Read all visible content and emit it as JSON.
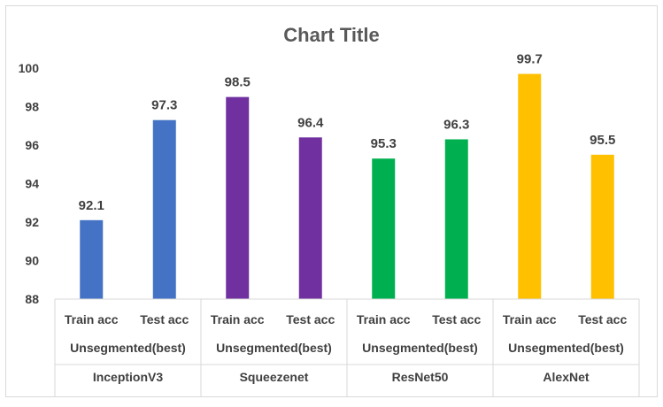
{
  "chart_data": {
    "type": "bar",
    "title": "Chart Title",
    "xlabel": "",
    "ylabel": "",
    "ylim": [
      88,
      100
    ],
    "y_ticks": [
      88,
      90,
      92,
      94,
      96,
      98,
      100
    ],
    "grid": false,
    "legend": "none",
    "groups": [
      {
        "model": "InceptionV3",
        "subgroup": "Unsegmented(best)",
        "color": "#4472C4",
        "bars": [
          {
            "label": "Train acc",
            "value": 92.1,
            "value_label": "92.1"
          },
          {
            "label": "Test acc",
            "value": 97.3,
            "value_label": "97.3"
          }
        ]
      },
      {
        "model": "Squeezenet",
        "subgroup": "Unsegmented(best)",
        "color": "#7030A0",
        "bars": [
          {
            "label": "Train acc",
            "value": 98.5,
            "value_label": "98.5"
          },
          {
            "label": "Test acc",
            "value": 96.4,
            "value_label": "96.4"
          }
        ]
      },
      {
        "model": "ResNet50",
        "subgroup": "Unsegmented(best)",
        "color": "#00B050",
        "bars": [
          {
            "label": "Train acc",
            "value": 95.3,
            "value_label": "95.3"
          },
          {
            "label": "Test acc",
            "value": 96.3,
            "value_label": "96.3"
          }
        ]
      },
      {
        "model": "AlexNet",
        "subgroup": "Unsegmented(best)",
        "color": "#FFC000",
        "bars": [
          {
            "label": "Train acc",
            "value": 99.7,
            "value_label": "99.7"
          },
          {
            "label": "Test acc",
            "value": 95.5,
            "value_label": "95.5"
          }
        ]
      }
    ]
  }
}
